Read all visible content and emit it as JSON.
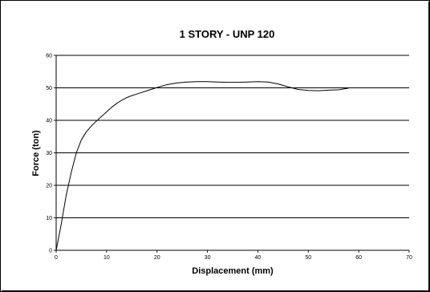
{
  "chart_data": {
    "type": "line",
    "title": "1 STORY - UNP 120",
    "xlabel": "Displacement (mm)",
    "ylabel": "Force (ton)",
    "xlim": [
      0,
      70
    ],
    "ylim": [
      0,
      60
    ],
    "xticks": [
      "0",
      "10",
      "20",
      "30",
      "40",
      "50",
      "60",
      "70"
    ],
    "yticks": [
      "0",
      "10",
      "20",
      "30",
      "40",
      "50",
      "60"
    ],
    "grid": "horizontal",
    "legend": "none",
    "series": [
      {
        "color": "#000000",
        "points": [
          [
            0,
            0
          ],
          [
            1,
            8
          ],
          [
            2,
            17
          ],
          [
            3,
            24
          ],
          [
            4,
            30
          ],
          [
            5,
            34
          ],
          [
            6,
            36.5
          ],
          [
            7,
            38.3
          ],
          [
            8,
            39.8
          ],
          [
            9,
            41.2
          ],
          [
            10,
            42.6
          ],
          [
            11,
            44
          ],
          [
            12,
            45.2
          ],
          [
            13,
            46.2
          ],
          [
            14,
            47
          ],
          [
            15,
            47.6
          ],
          [
            16,
            48.1
          ],
          [
            17,
            48.6
          ],
          [
            18,
            49.1
          ],
          [
            19,
            49.6
          ],
          [
            20,
            50.1
          ],
          [
            22,
            51
          ],
          [
            24,
            51.5
          ],
          [
            26,
            51.8
          ],
          [
            28,
            51.9
          ],
          [
            30,
            51.9
          ],
          [
            32,
            51.8
          ],
          [
            34,
            51.7
          ],
          [
            36,
            51.7
          ],
          [
            38,
            51.8
          ],
          [
            40,
            51.9
          ],
          [
            42,
            51.8
          ],
          [
            44,
            51.2
          ],
          [
            46,
            50.3
          ],
          [
            48,
            49.5
          ],
          [
            50,
            49.2
          ],
          [
            52,
            49.1
          ],
          [
            54,
            49.3
          ],
          [
            56,
            49.4
          ],
          [
            58,
            49.9
          ]
        ]
      }
    ]
  }
}
